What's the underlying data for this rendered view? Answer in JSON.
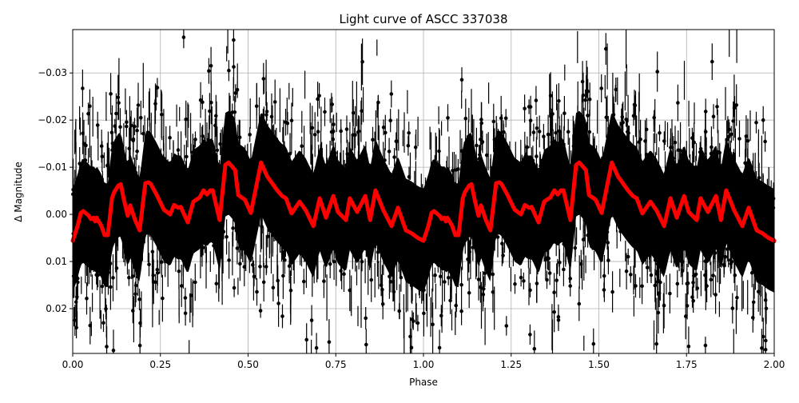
{
  "chart_data": {
    "type": "scatter",
    "title": "Light curve of ASCC 337038",
    "xlabel": "Phase",
    "ylabel": "Δ Magnitude",
    "xlim": [
      0.0,
      2.0
    ],
    "ylim": [
      0.0295,
      -0.0392
    ],
    "y_inverted": true,
    "grid": true,
    "legend": null,
    "x_ticks": [
      0.0,
      0.25,
      0.5,
      0.75,
      1.0,
      1.25,
      1.5,
      1.75,
      2.0
    ],
    "x_tick_labels": [
      "0.00",
      "0.25",
      "0.50",
      "0.75",
      "1.00",
      "1.25",
      "1.50",
      "1.75",
      "2.00"
    ],
    "y_ticks": [
      -0.03,
      -0.02,
      -0.01,
      0.0,
      0.01,
      0.02
    ],
    "y_tick_labels": [
      "−0.03",
      "−0.02",
      "−0.01",
      "0.00",
      "0.01",
      "0.02"
    ],
    "series": [
      {
        "name": "observations",
        "kind": "errorbar-scatter",
        "color": "#000000",
        "description": "Dense black data points with vertical error bars spanning roughly -0.039 to 0.029 in magnitude across the full phase range 0–2 (phase-folded, repeated twice)",
        "approx_scatter_range": [
          -0.039,
          0.029
        ]
      },
      {
        "name": "smoothed model",
        "kind": "line",
        "color": "#ff0000",
        "linewidth": 5,
        "period_repeats": 2,
        "one_period": {
          "phase": [
            0.0,
            0.014,
            0.023,
            0.03,
            0.046,
            0.052,
            0.059,
            0.064,
            0.068,
            0.082,
            0.091,
            0.1,
            0.112,
            0.118,
            0.13,
            0.137,
            0.146,
            0.157,
            0.164,
            0.178,
            0.191,
            0.207,
            0.216,
            0.223,
            0.239,
            0.26,
            0.278,
            0.289,
            0.301,
            0.308,
            0.328,
            0.344,
            0.362,
            0.373,
            0.383,
            0.392,
            0.399,
            0.419,
            0.435,
            0.444,
            0.463,
            0.472,
            0.491,
            0.508,
            0.537,
            0.554,
            0.583,
            0.597,
            0.608,
            0.624,
            0.647,
            0.665,
            0.686,
            0.704,
            0.722,
            0.743,
            0.756,
            0.779,
            0.79,
            0.811,
            0.834,
            0.848,
            0.863,
            0.886,
            0.909,
            0.927,
            0.95,
            0.966,
            0.984,
            1.0
          ],
          "delta_mag": [
            0.0056,
            0.0025,
            -0.0003,
            -0.0007,
            0.0003,
            0.001,
            0.0007,
            0.0015,
            0.0007,
            0.0025,
            0.0044,
            0.0044,
            -0.0034,
            -0.0047,
            -0.0061,
            -0.0064,
            -0.0031,
            0.0003,
            -0.0019,
            0.0012,
            0.0034,
            -0.0066,
            -0.0068,
            -0.0064,
            -0.0042,
            -0.001,
            0.0,
            -0.002,
            -0.0014,
            -0.0016,
            0.0017,
            -0.0027,
            -0.0036,
            -0.0051,
            -0.0042,
            -0.0051,
            -0.0051,
            0.0012,
            -0.0105,
            -0.011,
            -0.0094,
            -0.0041,
            -0.0031,
            -0.0003,
            -0.011,
            -0.0081,
            -0.0051,
            -0.0039,
            -0.0034,
            -0.0002,
            -0.0027,
            -0.0008,
            0.0025,
            -0.0034,
            0.0007,
            -0.0039,
            -0.0005,
            0.0012,
            -0.0034,
            -0.0005,
            -0.0039,
            0.0012,
            -0.0051,
            -0.0008,
            0.0025,
            -0.0014,
            0.0034,
            0.004,
            0.005,
            0.0056
          ]
        }
      }
    ]
  }
}
